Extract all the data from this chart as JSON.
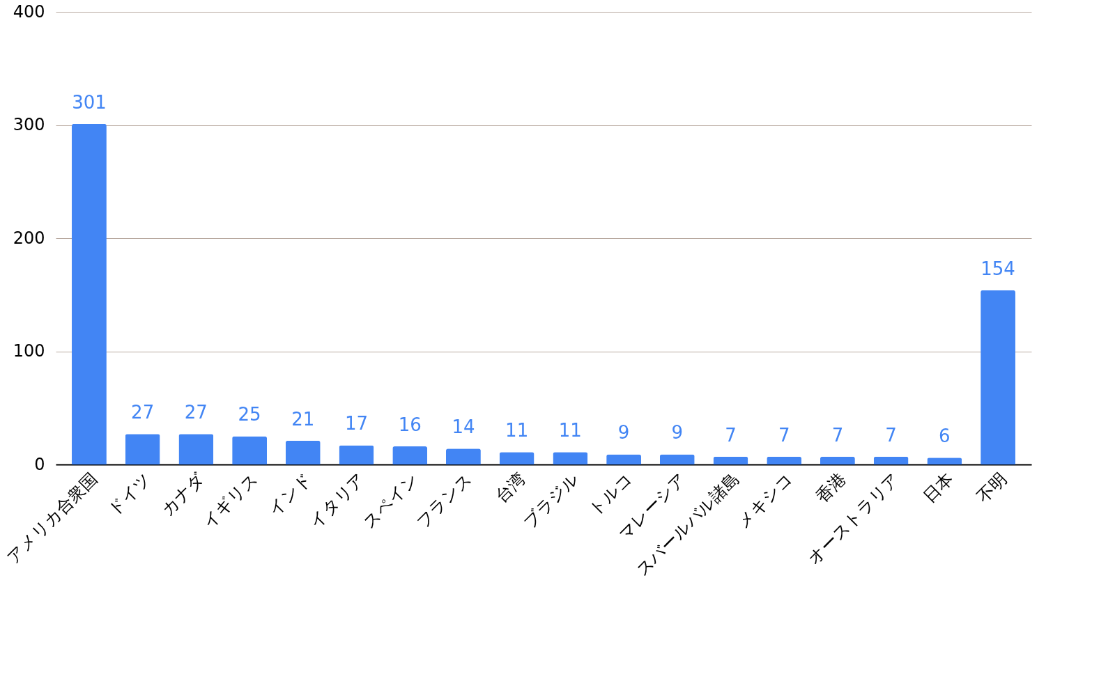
{
  "chart_data": {
    "type": "bar",
    "categories": [
      "アメリカ合衆国",
      "ドイツ",
      "カナダ",
      "イギリス",
      "インド",
      "イタリア",
      "スペイン",
      "フランス",
      "台湾",
      "ブラジル",
      "トルコ",
      "マレーシア",
      "スバールバル諸島",
      "メキシコ",
      "香港",
      "オーストラリア",
      "日本",
      "不明"
    ],
    "values": [
      301,
      27,
      27,
      25,
      21,
      17,
      16,
      14,
      11,
      11,
      9,
      9,
      7,
      7,
      7,
      7,
      6,
      154
    ],
    "color": "#4285f4",
    "ylim": [
      0,
      400
    ],
    "yticks": [
      0,
      100,
      200,
      300,
      400
    ],
    "grid": "y",
    "data_labels": true
  }
}
